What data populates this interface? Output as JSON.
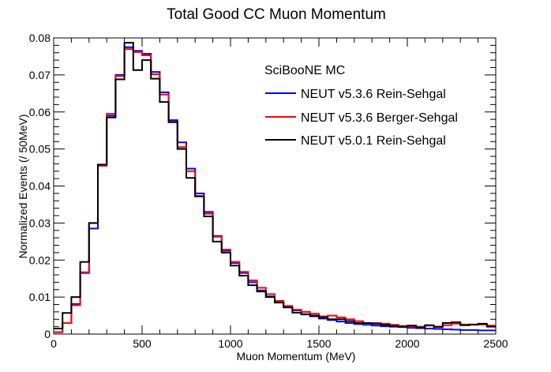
{
  "chart_data": {
    "type": "line",
    "title": "Total Good CC Muon Momentum",
    "xlabel": "Muon Momentum (MeV)",
    "ylabel": "Normalized Events (/ 50MeV)",
    "xlim": [
      0,
      2500
    ],
    "ylim": [
      0,
      0.08
    ],
    "bin_width": 50,
    "x_ticks": [
      0,
      500,
      1000,
      1500,
      2000,
      2500
    ],
    "y_ticks": [
      0,
      0.01,
      0.02,
      0.03,
      0.04,
      0.05,
      0.06,
      0.07,
      0.08
    ],
    "x_tick_labels": [
      "0",
      "500",
      "1000",
      "1500",
      "2000",
      "2500"
    ],
    "y_tick_labels": [
      "0",
      "0.01",
      "0.02",
      "0.03",
      "0.04",
      "0.05",
      "0.06",
      "0.07",
      "0.08"
    ],
    "grid": false,
    "legend": {
      "header": "SciBooNE MC",
      "placement": "top-right"
    },
    "series": [
      {
        "name": "NEUT v5.3.6 Rein-Sehgal",
        "color": "#0000ff",
        "bin_edges_start": 0,
        "values": [
          0.0005,
          0.003,
          0.0081,
          0.0165,
          0.0285,
          0.0455,
          0.059,
          0.07,
          0.0775,
          0.0765,
          0.0757,
          0.0708,
          0.0653,
          0.0578,
          0.0518,
          0.0447,
          0.038,
          0.033,
          0.0265,
          0.0225,
          0.0192,
          0.0165,
          0.014,
          0.0118,
          0.0102,
          0.0088,
          0.0074,
          0.0064,
          0.0054,
          0.0048,
          0.0042,
          0.0038,
          0.0034,
          0.003,
          0.0027,
          0.0025,
          0.0023,
          0.0021,
          0.002,
          0.0019,
          0.0017,
          0.0016,
          0.0015,
          0.0014,
          0.0013,
          0.0012,
          0.0011,
          0.0011,
          0.001,
          0.001
        ]
      },
      {
        "name": "NEUT v5.3.6 Berger-Sehgal",
        "color": "#ff0000",
        "bin_edges_start": 0,
        "values": [
          0.0005,
          0.003,
          0.0078,
          0.0167,
          0.03,
          0.0455,
          0.0595,
          0.0697,
          0.077,
          0.0762,
          0.0753,
          0.0702,
          0.0647,
          0.0572,
          0.0505,
          0.044,
          0.0373,
          0.0325,
          0.0263,
          0.0228,
          0.0195,
          0.0168,
          0.0145,
          0.0125,
          0.0108,
          0.009,
          0.0076,
          0.0066,
          0.006,
          0.0055,
          0.0048,
          0.005,
          0.0045,
          0.004,
          0.0035,
          0.003,
          0.003,
          0.0028,
          0.0025,
          0.0022,
          0.002,
          0.002,
          0.0023,
          0.0019,
          0.0024,
          0.0028,
          0.0026,
          0.0025,
          0.0026,
          0.0023
        ]
      },
      {
        "name": "NEUT v5.0.1 Rein-Sehgal",
        "color": "#000000",
        "bin_edges_start": 0,
        "values": [
          0.0015,
          0.0057,
          0.01,
          0.0195,
          0.03,
          0.0458,
          0.0585,
          0.0688,
          0.0787,
          0.0713,
          0.074,
          0.069,
          0.0627,
          0.0573,
          0.05,
          0.0422,
          0.0372,
          0.0318,
          0.025,
          0.022,
          0.0185,
          0.0158,
          0.0132,
          0.0115,
          0.01,
          0.0085,
          0.0072,
          0.0058,
          0.0053,
          0.005,
          0.0045,
          0.004,
          0.004,
          0.0035,
          0.003,
          0.003,
          0.0028,
          0.0025,
          0.0022,
          0.002,
          0.0023,
          0.0018,
          0.0024,
          0.002,
          0.003,
          0.0032,
          0.0024,
          0.0026,
          0.0028,
          0.002
        ]
      }
    ]
  }
}
